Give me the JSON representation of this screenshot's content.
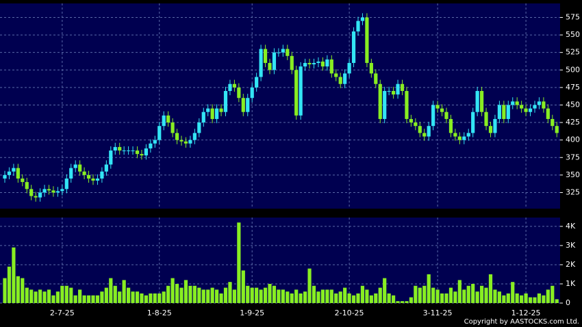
{
  "chart_data": [
    {
      "type": "candlestick",
      "categories": [
        null,
        null,
        null,
        null,
        null,
        null,
        null,
        null,
        null,
        null,
        null,
        null,
        null,
        "2-7-25",
        null,
        null,
        null,
        null,
        null,
        null,
        null,
        null,
        null,
        null,
        null,
        null,
        null,
        null,
        null,
        null,
        null,
        null,
        null,
        null,
        null,
        "1-8-25",
        null,
        null,
        null,
        null,
        null,
        null,
        null,
        null,
        null,
        null,
        null,
        null,
        null,
        null,
        null,
        null,
        null,
        null,
        null,
        null,
        "1-9-25",
        null,
        null,
        null,
        null,
        null,
        null,
        null,
        null,
        null,
        null,
        null,
        null,
        null,
        null,
        null,
        null,
        null,
        null,
        null,
        null,
        null,
        "2-10-25",
        null,
        null,
        null,
        null,
        null,
        null,
        null,
        null,
        null,
        null,
        null,
        null,
        null,
        null,
        null,
        null,
        null,
        null,
        null,
        "3-11-25",
        null,
        null,
        null,
        null,
        null,
        null,
        null,
        null,
        null,
        null,
        null,
        null,
        null,
        null,
        null,
        null,
        null,
        null,
        null,
        "1-12-25",
        null,
        null,
        null,
        null,
        null,
        null,
        null
      ],
      "open": [
        345,
        350,
        355,
        360,
        345,
        340,
        330,
        320,
        318,
        325,
        330,
        328,
        325,
        327,
        330,
        345,
        360,
        365,
        355,
        350,
        345,
        342,
        345,
        355,
        365,
        385,
        390,
        385,
        385,
        385,
        385,
        380,
        378,
        388,
        395,
        400,
        420,
        435,
        425,
        410,
        400,
        398,
        395,
        400,
        410,
        425,
        440,
        445,
        430,
        445,
        440,
        470,
        480,
        475,
        460,
        440,
        460,
        475,
        490,
        530,
        510,
        500,
        525,
        525,
        530,
        520,
        500,
        435,
        505,
        510,
        508,
        510,
        512,
        505,
        515,
        495,
        490,
        480,
        495,
        510,
        555,
        570,
        575,
        510,
        495,
        480,
        430,
        470,
        470,
        465,
        480,
        470,
        430,
        425,
        420,
        410,
        405,
        420,
        450,
        445,
        440,
        430,
        410,
        405,
        400,
        405,
        410,
        440,
        470,
        440,
        420,
        410,
        430,
        450,
        430,
        450,
        455,
        450,
        445,
        440,
        445,
        450,
        455,
        445,
        430,
        420
      ],
      "high": [
        356,
        361,
        366,
        366,
        351,
        346,
        336,
        326,
        331,
        336,
        336,
        334,
        333,
        336,
        351,
        366,
        371,
        371,
        361,
        356,
        351,
        351,
        361,
        371,
        391,
        396,
        396,
        391,
        391,
        391,
        391,
        386,
        394,
        401,
        406,
        426,
        441,
        441,
        431,
        416,
        406,
        404,
        406,
        416,
        431,
        446,
        451,
        451,
        451,
        451,
        476,
        486,
        486,
        481,
        466,
        466,
        481,
        496,
        536,
        536,
        516,
        531,
        531,
        536,
        536,
        526,
        506,
        511,
        516,
        516,
        516,
        518,
        518,
        521,
        521,
        501,
        496,
        501,
        516,
        561,
        576,
        581,
        581,
        516,
        501,
        486,
        476,
        476,
        476,
        486,
        486,
        476,
        436,
        431,
        426,
        416,
        426,
        456,
        456,
        451,
        446,
        436,
        416,
        411,
        411,
        416,
        446,
        476,
        476,
        446,
        426,
        436,
        456,
        456,
        456,
        461,
        461,
        456,
        451,
        451,
        456,
        461,
        461,
        451,
        436,
        426
      ],
      "low": [
        339,
        344,
        349,
        339,
        334,
        324,
        314,
        312,
        312,
        319,
        322,
        319,
        319,
        321,
        324,
        339,
        354,
        349,
        344,
        339,
        336,
        336,
        339,
        349,
        359,
        379,
        379,
        379,
        379,
        379,
        374,
        372,
        372,
        382,
        389,
        394,
        414,
        419,
        404,
        394,
        392,
        389,
        389,
        394,
        404,
        419,
        434,
        424,
        424,
        434,
        434,
        464,
        469,
        454,
        434,
        434,
        454,
        469,
        484,
        504,
        494,
        494,
        519,
        519,
        514,
        494,
        429,
        429,
        499,
        502,
        502,
        504,
        499,
        499,
        489,
        484,
        474,
        474,
        489,
        504,
        549,
        564,
        504,
        489,
        474,
        424,
        424,
        464,
        459,
        459,
        464,
        424,
        419,
        414,
        404,
        399,
        399,
        414,
        439,
        434,
        424,
        404,
        399,
        394,
        394,
        399,
        404,
        434,
        434,
        414,
        404,
        404,
        424,
        424,
        424,
        444,
        444,
        439,
        434,
        434,
        439,
        444,
        439,
        424,
        414,
        404
      ],
      "close": [
        350,
        355,
        360,
        345,
        340,
        330,
        320,
        318,
        325,
        330,
        328,
        325,
        327,
        330,
        345,
        360,
        365,
        355,
        350,
        345,
        342,
        345,
        355,
        365,
        385,
        390,
        385,
        385,
        385,
        385,
        380,
        378,
        388,
        395,
        400,
        420,
        435,
        425,
        410,
        400,
        398,
        395,
        400,
        410,
        425,
        440,
        445,
        430,
        445,
        440,
        470,
        480,
        475,
        460,
        440,
        460,
        475,
        490,
        530,
        510,
        500,
        525,
        525,
        530,
        520,
        500,
        435,
        505,
        510,
        508,
        510,
        512,
        505,
        515,
        495,
        490,
        480,
        495,
        510,
        555,
        570,
        575,
        510,
        495,
        480,
        430,
        470,
        470,
        465,
        480,
        470,
        430,
        425,
        420,
        410,
        405,
        420,
        450,
        445,
        440,
        430,
        410,
        405,
        400,
        405,
        410,
        440,
        470,
        440,
        420,
        410,
        430,
        450,
        430,
        450,
        455,
        450,
        445,
        440,
        445,
        450,
        455,
        445,
        430,
        420,
        410
      ],
      "up_color": "#33e5f5",
      "down_color": "#88ee22",
      "ylim": [
        302,
        595
      ],
      "yticks": [
        325,
        350,
        375,
        400,
        425,
        450,
        475,
        500,
        525,
        550,
        575
      ],
      "grid": true
    },
    {
      "type": "bar",
      "values": [
        1300,
        1900,
        2900,
        1400,
        1300,
        800,
        700,
        600,
        700,
        600,
        700,
        400,
        600,
        900,
        900,
        800,
        400,
        700,
        400,
        400,
        400,
        400,
        600,
        800,
        1300,
        900,
        600,
        1200,
        800,
        600,
        600,
        500,
        400,
        500,
        500,
        500,
        600,
        900,
        1300,
        1000,
        800,
        1200,
        900,
        900,
        800,
        700,
        700,
        800,
        700,
        500,
        800,
        1100,
        700,
        4200,
        1700,
        900,
        800,
        800,
        700,
        800,
        1000,
        900,
        700,
        700,
        600,
        500,
        700,
        500,
        600,
        1800,
        900,
        600,
        700,
        700,
        700,
        500,
        600,
        800,
        500,
        400,
        500,
        900,
        700,
        400,
        500,
        800,
        1300,
        500,
        400,
        100,
        100,
        100,
        300,
        900,
        800,
        900,
        1500,
        800,
        700,
        500,
        500,
        800,
        600,
        1200,
        700,
        900,
        1000,
        600,
        900,
        800,
        1500,
        700,
        600,
        400,
        500,
        1100,
        500,
        400,
        500,
        300,
        300,
        500,
        400,
        700,
        900,
        200
      ],
      "color": "#88ee22",
      "ylim": [
        0,
        4460
      ],
      "yticks": [
        0,
        {
          "value": 1000,
          "label": "1K"
        },
        {
          "value": 2000,
          "label": "2K"
        },
        {
          "value": 3000,
          "label": "3K"
        },
        {
          "value": 4000,
          "label": "4K"
        }
      ],
      "grid": true
    }
  ],
  "copyright": "Copyright by AASTOCKS.com Ltd."
}
